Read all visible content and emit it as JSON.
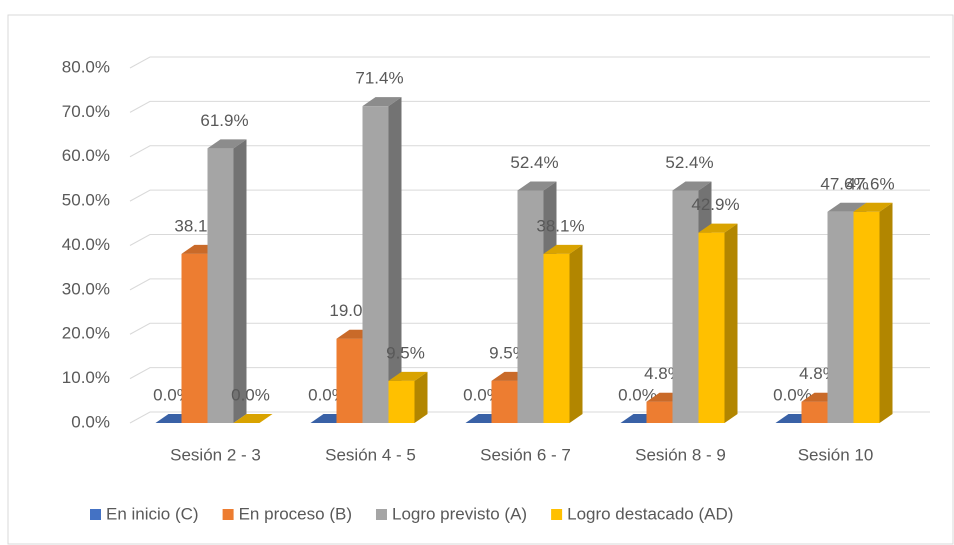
{
  "chart_data": {
    "type": "bar3d",
    "categories": [
      "Sesión 2 - 3",
      "Sesión 4 - 5",
      "Sesión 6 - 7",
      "Sesión 8 - 9",
      "Sesión 10"
    ],
    "series": [
      {
        "name": "En inicio (C)",
        "color": "#4472c4",
        "values": [
          0,
          0,
          0,
          0,
          0
        ],
        "value_labels": [
          "0.0%",
          "0.0%",
          "0.0%",
          "0.0%",
          "0.0%"
        ]
      },
      {
        "name": "En proceso (B)",
        "color": "#ed7d31",
        "values": [
          38.1,
          19.0,
          9.5,
          4.8,
          4.8
        ],
        "value_labels": [
          "38.1%",
          "19.0%",
          "9.5%",
          "4.8%",
          "4.8%"
        ]
      },
      {
        "name": "Logro previsto (A)",
        "color": "#a5a5a5",
        "values": [
          61.9,
          71.4,
          52.4,
          52.4,
          47.6
        ],
        "value_labels": [
          "61.9%",
          "71.4%",
          "52.4%",
          "52.4%",
          "47.6%"
        ]
      },
      {
        "name": "Logro destacado (AD)",
        "color": "#ffc000",
        "values": [
          0,
          9.5,
          38.1,
          42.9,
          47.6
        ],
        "value_labels": [
          "0.0%",
          "9.5%",
          "38.1%",
          "42.9%",
          "47.6%"
        ]
      }
    ],
    "ylim": [
      0,
      80
    ],
    "yticks": [
      {
        "value": 0,
        "label": "0.0%"
      },
      {
        "value": 10,
        "label": "10.0%"
      },
      {
        "value": 20,
        "label": "20.0%"
      },
      {
        "value": 30,
        "label": "30.0%"
      },
      {
        "value": 40,
        "label": "40.0%"
      },
      {
        "value": 50,
        "label": "50.0%"
      },
      {
        "value": 60,
        "label": "60.0%"
      },
      {
        "value": 70,
        "label": "70.0%"
      },
      {
        "value": 80,
        "label": "80.0%"
      }
    ],
    "grid": true,
    "legend": "bottom"
  }
}
